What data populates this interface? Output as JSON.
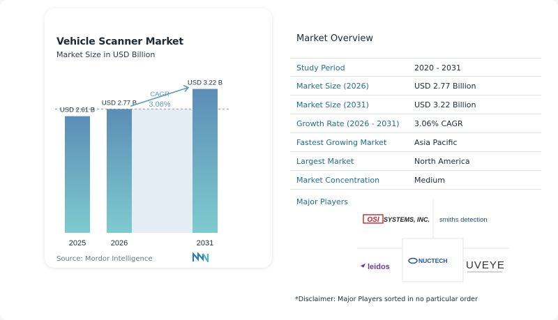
{
  "chart": {
    "title": "Vehicle Scanner Market",
    "subtitle": "Market Size in USD Billion",
    "source": "Source: Mordor Intelligence",
    "cagr_label": "CAGR",
    "cagr_value": "3.06%"
  },
  "chart_data": {
    "type": "bar",
    "title": "Vehicle Scanner Market",
    "subtitle": "Market Size in USD Billion",
    "categories": [
      "2025",
      "2026",
      "2031"
    ],
    "values": [
      2.61,
      2.77,
      3.22
    ],
    "data_labels": [
      "USD 2.61 B",
      "USD 2.77 B",
      "USD 3.22 B"
    ],
    "ylim": [
      0,
      3.4
    ],
    "annotation": {
      "label": "CAGR",
      "value": "3.06%"
    },
    "colors": {
      "bar_top": "#5b8db6",
      "bar_bottom": "#7ecbcf",
      "cagr": "#5c9bc0",
      "band": "#e4edf4"
    }
  },
  "overview": {
    "title": "Market Overview",
    "rows": [
      {
        "label": "Study Period",
        "value": "2020 - 2031"
      },
      {
        "label": "Market Size (2026)",
        "value": "USD 2.77 Billion"
      },
      {
        "label": "Market Size (2031)",
        "value": "USD 3.22 Billion"
      },
      {
        "label": "Growth Rate (2026 - 2031)",
        "value": "3.06% CAGR"
      },
      {
        "label": "Fastest Growing Market",
        "value": "Asia Pacific"
      },
      {
        "label": "Largest Market",
        "value": "North America"
      },
      {
        "label": "Market Concentration",
        "value": "Medium"
      }
    ]
  },
  "players": {
    "title": "Major Players",
    "logos": [
      "OSI SYSTEMS, INC.",
      "smiths detection",
      "leidos",
      "NUCTECH",
      "UVEYE"
    ]
  },
  "disclaimer": "*Disclaimer: Major Players sorted in no particular order"
}
